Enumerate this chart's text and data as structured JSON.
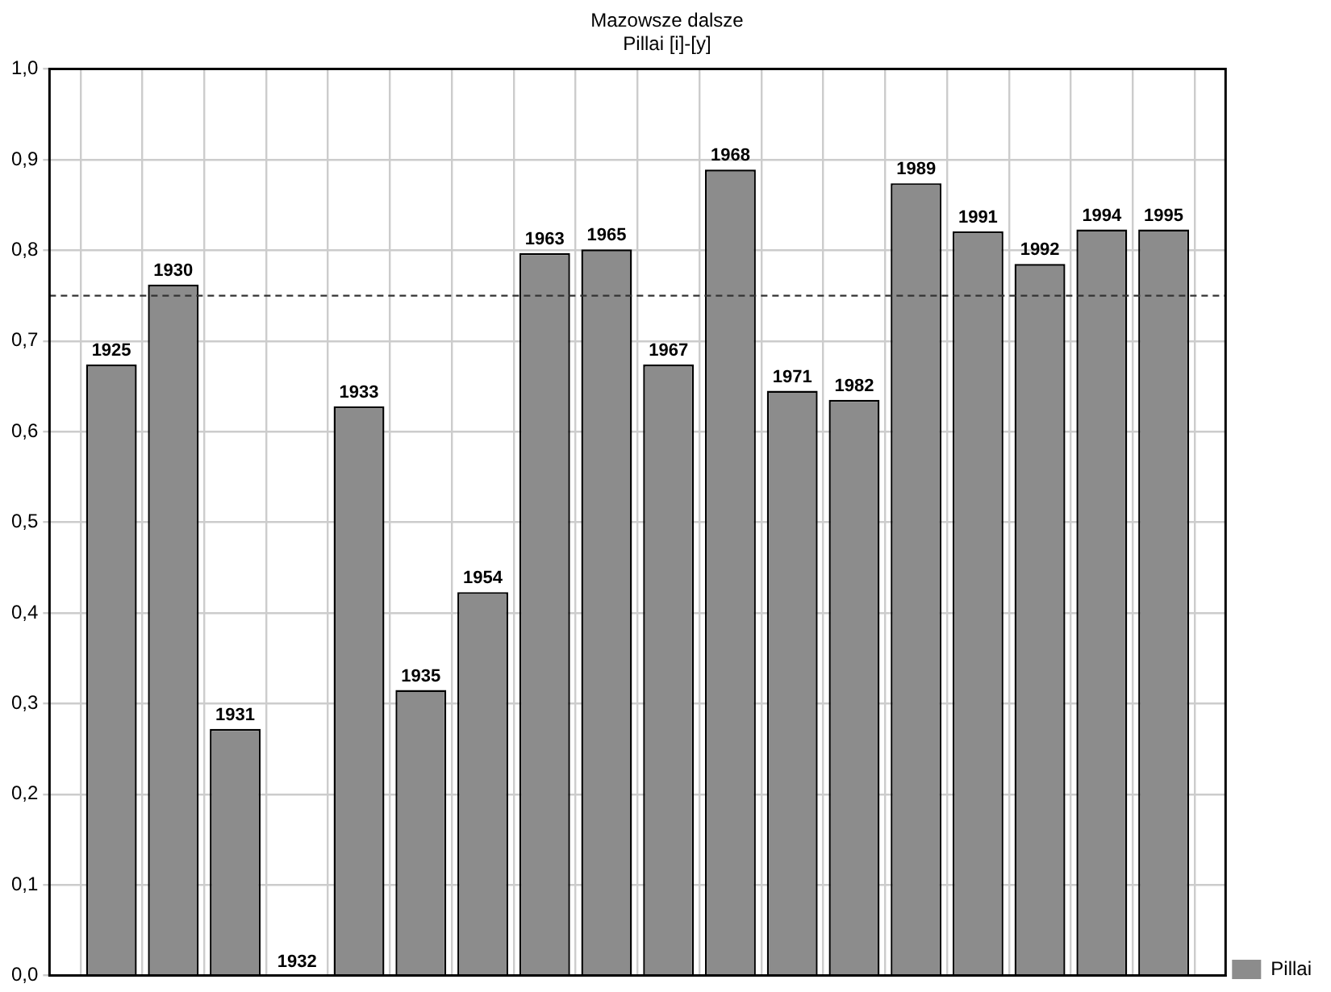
{
  "chart_data": {
    "type": "bar",
    "title": "Mazowsze dalsze",
    "subtitle": "Pillai [i]-[y]",
    "categories": [
      "1925",
      "1930",
      "1931",
      "1932",
      "1933",
      "1935",
      "1954",
      "1963",
      "1965",
      "1967",
      "1968",
      "1971",
      "1982",
      "1989",
      "1991",
      "1992",
      "1994",
      "1995"
    ],
    "series": [
      {
        "name": "Pillai",
        "color": "#8c8c8c",
        "values": [
          0.674,
          0.762,
          0.272,
          0,
          0.628,
          0.315,
          0.423,
          0.797,
          0.801,
          0.674,
          0.889,
          0.645,
          0.635,
          0.874,
          0.821,
          0.785,
          0.823,
          0.823
        ]
      }
    ],
    "ylim": [
      0,
      1
    ],
    "yticks": [
      {
        "value": 0,
        "label": "0,0"
      },
      {
        "value": 0.1,
        "label": "0,1"
      },
      {
        "value": 0.2,
        "label": "0,2"
      },
      {
        "value": 0.3,
        "label": "0,3"
      },
      {
        "value": 0.4,
        "label": "0,4"
      },
      {
        "value": 0.5,
        "label": "0,5"
      },
      {
        "value": 0.6,
        "label": "0,6"
      },
      {
        "value": 0.7,
        "label": "0,7"
      },
      {
        "value": 0.8,
        "label": "0,8"
      },
      {
        "value": 0.9,
        "label": "0,9"
      },
      {
        "value": 1,
        "label": "1,0"
      }
    ],
    "ref_lines": [
      {
        "axis": "y",
        "value": 0.75,
        "color": "#333333",
        "line_style": "dashed"
      }
    ],
    "grid": true,
    "legend": "bottom right"
  }
}
